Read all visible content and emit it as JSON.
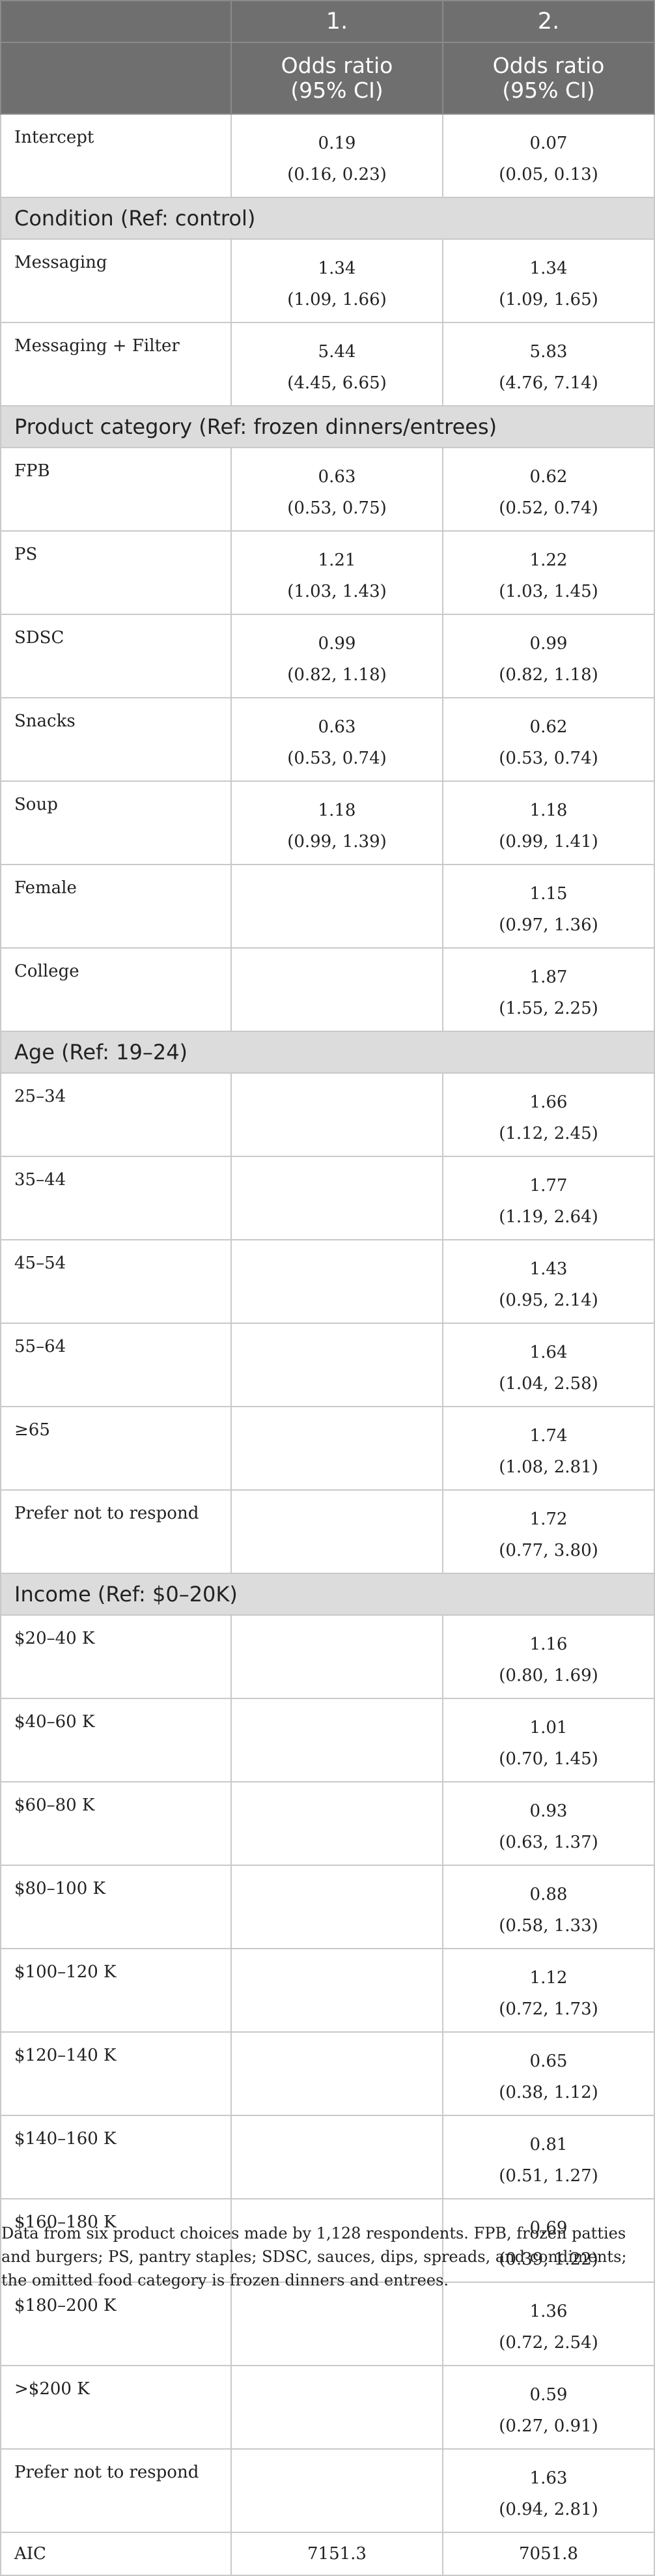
{
  "header": {
    "col1_number": "1.",
    "col2_number": "2.",
    "col1_title": "Odds ratio",
    "col1_ci": "(95% CI)",
    "col2_title": "Odds ratio",
    "col2_ci": "(95% CI)"
  },
  "rows": [
    {
      "type": "data",
      "label": "Intercept",
      "m1": "0.19",
      "m1_ci": "(0.16, 0.23)",
      "m2": "0.07",
      "m2_ci": "(0.05, 0.13)"
    },
    {
      "type": "section",
      "label": "Condition (Ref: control)"
    },
    {
      "type": "data",
      "label": "Messaging",
      "m1": "1.34",
      "m1_ci": "(1.09, 1.66)",
      "m2": "1.34",
      "m2_ci": "(1.09, 1.65)"
    },
    {
      "type": "data",
      "label": "Messaging + Filter",
      "m1": "5.44",
      "m1_ci": "(4.45, 6.65)",
      "m2": "5.83",
      "m2_ci": "(4.76, 7.14)"
    },
    {
      "type": "section",
      "label": "Product category (Ref: frozen dinners/entrees)"
    },
    {
      "type": "data",
      "label": "FPB",
      "m1": "0.63",
      "m1_ci": "(0.53, 0.75)",
      "m2": "0.62",
      "m2_ci": "(0.52, 0.74)"
    },
    {
      "type": "data",
      "label": "PS",
      "m1": "1.21",
      "m1_ci": "(1.03, 1.43)",
      "m2": "1.22",
      "m2_ci": "(1.03, 1.45)"
    },
    {
      "type": "data",
      "label": "SDSC",
      "m1": "0.99",
      "m1_ci": "(0.82, 1.18)",
      "m2": "0.99",
      "m2_ci": "(0.82, 1.18)"
    },
    {
      "type": "data",
      "label": "Snacks",
      "m1": "0.63",
      "m1_ci": "(0.53, 0.74)",
      "m2": "0.62",
      "m2_ci": "(0.53, 0.74)"
    },
    {
      "type": "data",
      "label": "Soup",
      "m1": "1.18",
      "m1_ci": "(0.99, 1.39)",
      "m2": "1.18",
      "m2_ci": "(0.99, 1.41)"
    },
    {
      "type": "data",
      "label": "Female",
      "m1": "",
      "m1_ci": "",
      "m2": "1.15",
      "m2_ci": "(0.97, 1.36)"
    },
    {
      "type": "data",
      "label": "College",
      "m1": "",
      "m1_ci": "",
      "m2": "1.87",
      "m2_ci": "(1.55, 2.25)"
    },
    {
      "type": "section",
      "label": "Age (Ref: 19–24)"
    },
    {
      "type": "data",
      "label": "25–34",
      "m1": "",
      "m1_ci": "",
      "m2": "1.66",
      "m2_ci": "(1.12, 2.45)"
    },
    {
      "type": "data",
      "label": "35–44",
      "m1": "",
      "m1_ci": "",
      "m2": "1.77",
      "m2_ci": "(1.19, 2.64)"
    },
    {
      "type": "data",
      "label": "45–54",
      "m1": "",
      "m1_ci": "",
      "m2": "1.43",
      "m2_ci": "(0.95, 2.14)"
    },
    {
      "type": "data",
      "label": "55–64",
      "m1": "",
      "m1_ci": "",
      "m2": "1.64",
      "m2_ci": "(1.04, 2.58)"
    },
    {
      "type": "data",
      "label": "≥65",
      "m1": "",
      "m1_ci": "",
      "m2": "1.74",
      "m2_ci": "(1.08, 2.81)"
    },
    {
      "type": "data",
      "label": "Prefer not to respond",
      "m1": "",
      "m1_ci": "",
      "m2": "1.72",
      "m2_ci": "(0.77, 3.80)"
    },
    {
      "type": "section",
      "label": "Income (Ref: $0–20K)"
    },
    {
      "type": "data",
      "label": "$20–40 K",
      "m1": "",
      "m1_ci": "",
      "m2": "1.16",
      "m2_ci": "(0.80, 1.69)"
    },
    {
      "type": "data",
      "label": "$40–60 K",
      "m1": "",
      "m1_ci": "",
      "m2": "1.01",
      "m2_ci": "(0.70, 1.45)"
    },
    {
      "type": "data",
      "label": "$60–80 K",
      "m1": "",
      "m1_ci": "",
      "m2": "0.93",
      "m2_ci": "(0.63, 1.37)"
    },
    {
      "type": "data",
      "label": "$80–100 K",
      "m1": "",
      "m1_ci": "",
      "m2": "0.88",
      "m2_ci": "(0.58, 1.33)"
    },
    {
      "type": "data",
      "label": "$100–120 K",
      "m1": "",
      "m1_ci": "",
      "m2": "1.12",
      "m2_ci": "(0.72, 1.73)"
    },
    {
      "type": "data",
      "label": "$120–140 K",
      "m1": "",
      "m1_ci": "",
      "m2": "0.65",
      "m2_ci": "(0.38, 1.12)"
    },
    {
      "type": "data",
      "label": "$140–160 K",
      "m1": "",
      "m1_ci": "",
      "m2": "0.81",
      "m2_ci": "(0.51, 1.27)"
    },
    {
      "type": "data",
      "label": "$160–180 K",
      "m1": "",
      "m1_ci": "",
      "m2": "0.69",
      "m2_ci": "(0.39, 1.22)"
    },
    {
      "type": "data",
      "label": "$180–200 K",
      "m1": "",
      "m1_ci": "",
      "m2": "1.36",
      "m2_ci": "(0.72, 2.54)"
    },
    {
      "type": "data",
      "label": ">$200 K",
      "m1": "",
      "m1_ci": "",
      "m2": "0.59",
      "m2_ci": "(0.27, 0.91)"
    },
    {
      "type": "data",
      "label": "Prefer not to respond",
      "m1": "",
      "m1_ci": "",
      "m2": "1.63",
      "m2_ci": "(0.94, 2.81)"
    },
    {
      "type": "aic",
      "label": "AIC",
      "m1": "7151.3",
      "m2": "7051.8"
    }
  ],
  "footnote": "Data from six product choices made by 1,128 respondents. FPB, frozen patties and burgers; PS, pantry staples; SDSC, sauces, dips, spreads, and condiments; the omitted food category is frozen dinners and entrees."
}
